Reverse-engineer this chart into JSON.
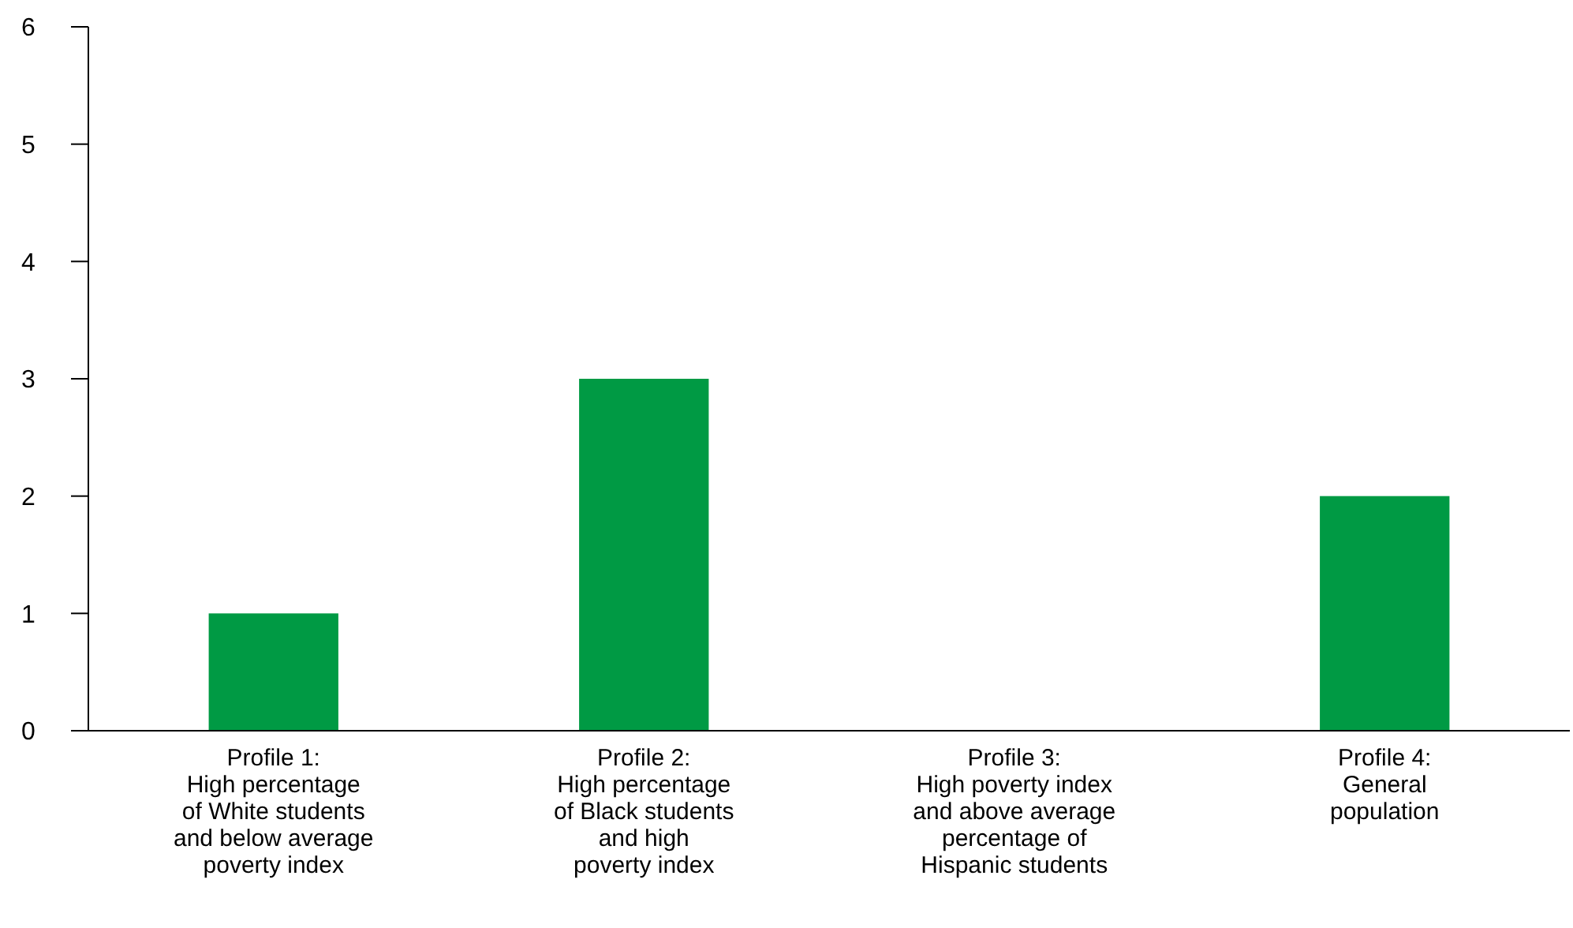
{
  "chart_data": {
    "type": "bar",
    "categories": [
      "Profile 1:\nHigh percentage\nof White students\nand below average\npoverty index",
      "Profile 2:\nHigh percentage\nof Black students\nand high\npoverty index",
      "Profile 3:\nHigh poverty index\nand above average\npercentage of\nHispanic students",
      "Profile 4:\nGeneral\npopulation"
    ],
    "values": [
      1,
      3,
      0,
      2
    ],
    "color": "#009a44",
    "ylim": [
      0,
      6
    ],
    "yticks": [
      0,
      1,
      2,
      3,
      4,
      5,
      6
    ],
    "grid": false
  }
}
